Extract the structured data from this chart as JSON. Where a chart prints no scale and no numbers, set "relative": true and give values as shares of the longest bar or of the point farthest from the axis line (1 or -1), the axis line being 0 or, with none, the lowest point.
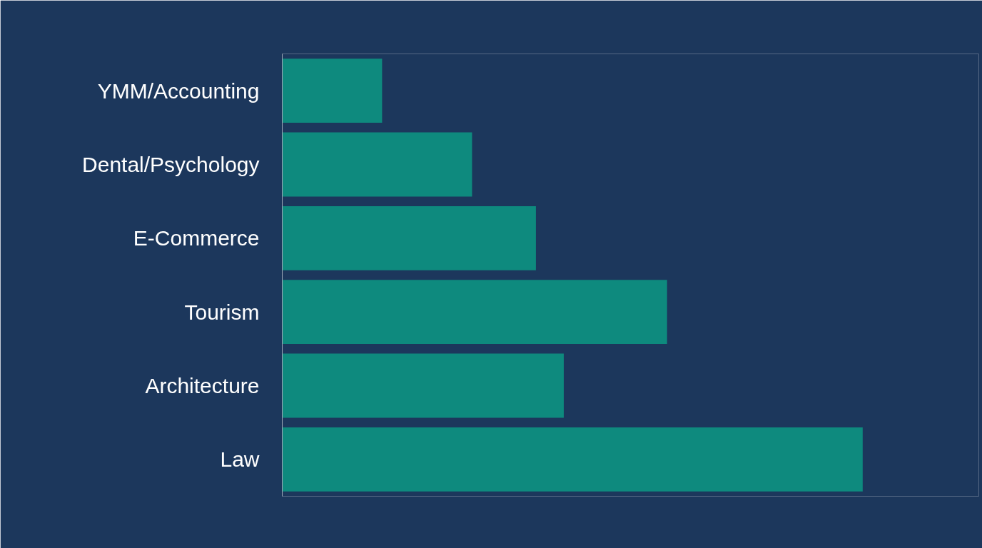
{
  "chart_data": {
    "type": "bar",
    "orientation": "horizontal",
    "relative": true,
    "categories": [
      "YMM/Accounting",
      "Dental/Psychology",
      "E-Commerce",
      "Tourism",
      "Architecture",
      "Law"
    ],
    "values": [
      0.172,
      0.327,
      0.437,
      0.663,
      0.485,
      1
    ],
    "color": "#0e8a7e",
    "grid": false
  }
}
